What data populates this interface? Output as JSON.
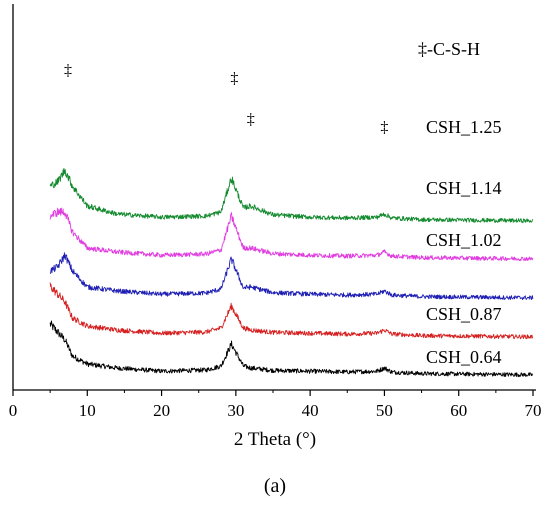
{
  "chart_data": {
    "type": "line",
    "xlabel": "2 Theta (°)",
    "xlim": [
      0,
      70
    ],
    "xticks": [
      0,
      10,
      20,
      30,
      40,
      50,
      60,
      70
    ],
    "y_axis_visible": false,
    "grid": false,
    "caption": "(a)",
    "legend": {
      "marker": "‡",
      "text": "-C-S-H",
      "placement": "top-right"
    },
    "peak_marker": "‡",
    "peaks": [
      7,
      29.4,
      32,
      50
    ],
    "series": [
      {
        "name": "CSH_0.64",
        "color": "#000000",
        "offset": 0,
        "x": [
          5,
          6,
          7,
          8,
          10,
          14,
          20,
          26,
          28,
          29.4,
          31,
          32,
          35,
          40,
          45,
          49,
          50,
          51,
          55,
          60,
          65,
          70
        ],
        "y": [
          14,
          12,
          10,
          6,
          4,
          3,
          2.2,
          2.5,
          3.5,
          9,
          3.5,
          3,
          2.4,
          2.2,
          2,
          2.2,
          3,
          2,
          1.6,
          1.5,
          1.4,
          1.3
        ]
      },
      {
        "name": "CSH_0.87",
        "color": "#d62020",
        "offset": 38,
        "x": [
          5,
          6,
          7,
          8,
          10,
          14,
          20,
          26,
          28,
          29.4,
          31,
          32,
          35,
          40,
          45,
          49,
          50,
          51,
          55,
          60,
          65,
          70
        ],
        "y": [
          14,
          12,
          10,
          6,
          4,
          3,
          2.2,
          2.5,
          3.5,
          9,
          3.5,
          3,
          2.4,
          2.2,
          2,
          2.2,
          3,
          2,
          1.6,
          1.5,
          1.4,
          1.3
        ]
      },
      {
        "name": "CSH_1.02",
        "color": "#1f1fb4",
        "offset": 77,
        "x": [
          5,
          6,
          7,
          8,
          10,
          14,
          20,
          26,
          28,
          29.4,
          31,
          32,
          35,
          40,
          45,
          49,
          50,
          51,
          55,
          60,
          65,
          70
        ],
        "y": [
          8,
          9,
          12,
          8,
          4,
          3,
          2.2,
          2.5,
          3.5,
          11,
          3.8,
          4,
          2.6,
          2.2,
          2,
          2.2,
          3,
          2,
          1.6,
          1.5,
          1.4,
          1.3
        ]
      },
      {
        "name": "CSH_1.14",
        "color": "#e03ce0",
        "offset": 116,
        "x": [
          5,
          6,
          7,
          8,
          10,
          14,
          20,
          26,
          28,
          29.4,
          31,
          32,
          35,
          40,
          45,
          49,
          50,
          51,
          55,
          60,
          65,
          70
        ],
        "y": [
          12,
          13,
          13,
          8,
          4,
          3,
          2.2,
          2.5,
          3.5,
          12,
          4,
          4,
          2.6,
          2.2,
          2,
          2.2,
          3,
          2,
          1.6,
          1.5,
          1.4,
          1.3
        ]
      },
      {
        "name": "CSH_1.25",
        "color": "#138a2e",
        "offset": 154,
        "x": [
          5,
          6,
          7,
          8,
          10,
          14,
          20,
          26,
          28,
          29.4,
          31,
          32,
          35,
          40,
          45,
          49,
          50,
          51,
          55,
          60,
          65,
          70
        ],
        "y": [
          10,
          11,
          14,
          10,
          5,
          3,
          2.2,
          2.5,
          3.5,
          12,
          4.5,
          5,
          2.8,
          2.2,
          2,
          2.2,
          3,
          2,
          1.6,
          1.5,
          1.4,
          1.3
        ]
      }
    ]
  }
}
